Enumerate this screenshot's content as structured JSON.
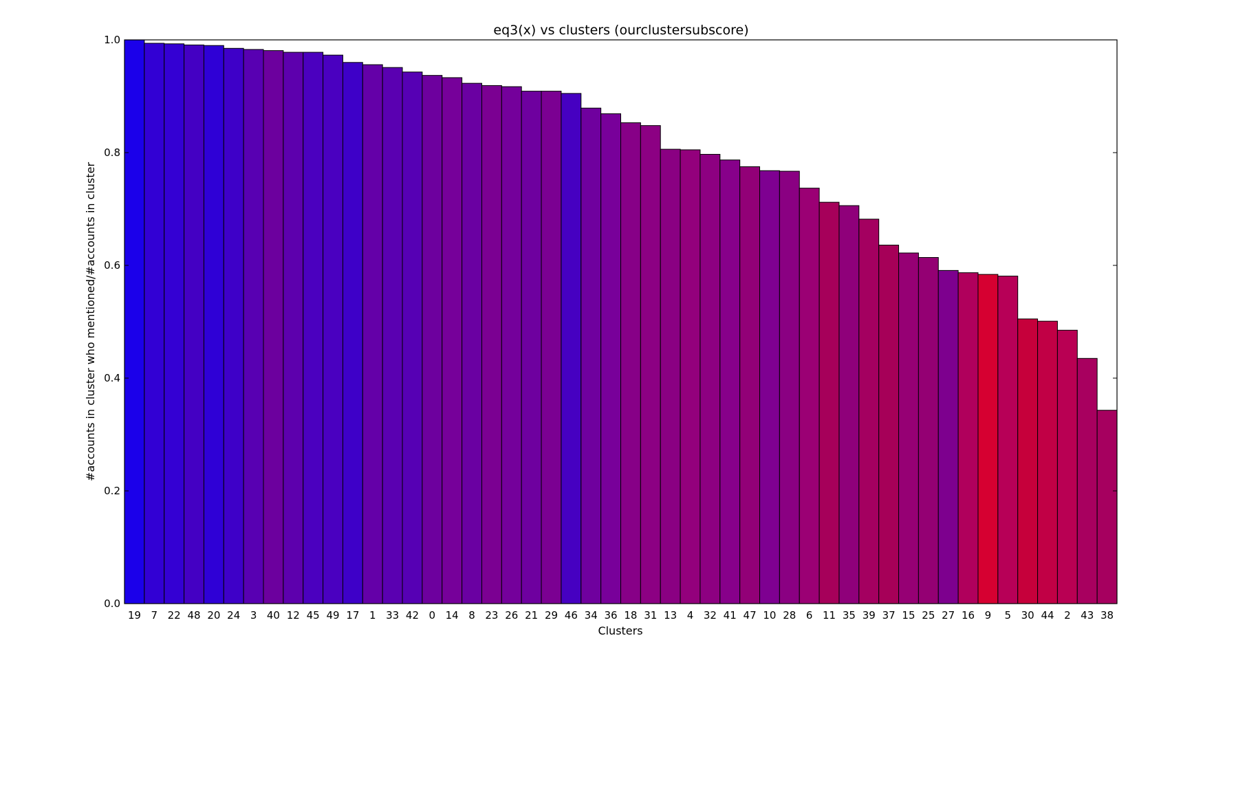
{
  "chart_data": {
    "type": "bar",
    "title": "eq3(x) vs clusters (ourclustersubscore)",
    "xlabel": "Clusters",
    "ylabel": "#accounts in cluster who mentioned/#accounts in cluster",
    "ylim": [
      0,
      1.0
    ],
    "yticks": [
      0.0,
      0.2,
      0.4,
      0.6,
      0.8,
      1.0
    ],
    "ytick_labels": [
      "0.0",
      "0.2",
      "0.4",
      "0.6",
      "0.8",
      "1.0"
    ],
    "grid": false,
    "legend": "none",
    "categories": [
      "19",
      "7",
      "22",
      "48",
      "20",
      "24",
      "3",
      "40",
      "12",
      "45",
      "49",
      "17",
      "1",
      "33",
      "42",
      "0",
      "14",
      "8",
      "23",
      "26",
      "21",
      "29",
      "46",
      "34",
      "36",
      "18",
      "31",
      "13",
      "4",
      "32",
      "41",
      "47",
      "10",
      "28",
      "6",
      "11",
      "35",
      "39",
      "37",
      "15",
      "25",
      "27",
      "16",
      "9",
      "5",
      "30",
      "44",
      "2",
      "43",
      "38"
    ],
    "values": [
      1.0,
      0.994,
      0.993,
      0.991,
      0.99,
      0.985,
      0.983,
      0.981,
      0.978,
      0.978,
      0.973,
      0.96,
      0.956,
      0.951,
      0.943,
      0.937,
      0.933,
      0.923,
      0.919,
      0.917,
      0.909,
      0.909,
      0.905,
      0.879,
      0.869,
      0.853,
      0.848,
      0.806,
      0.805,
      0.797,
      0.787,
      0.775,
      0.768,
      0.767,
      0.737,
      0.712,
      0.706,
      0.682,
      0.636,
      0.622,
      0.614,
      0.591,
      0.587,
      0.584,
      0.581,
      0.505,
      0.501,
      0.485,
      0.435,
      0.343
    ],
    "bar_colors": [
      "#1b00ea",
      "#3200d4",
      "#3400d3",
      "#4400c3",
      "#2f00d6",
      "#3e00c8",
      "#5800b2",
      "#6c009e",
      "#5d00ad",
      "#4b00bf",
      "#4a00c0",
      "#3e00c8",
      "#6400a8",
      "#5a00b1",
      "#5600b4",
      "#6d009e",
      "#76009a",
      "#6a00a2",
      "#7b0092",
      "#74009b",
      "#6e009f",
      "#7b0092",
      "#4600c1",
      "#6f009e",
      "#78009a",
      "#870087",
      "#8c0083",
      "#8a0082",
      "#93007c",
      "#8d0081",
      "#87008a",
      "#920077",
      "#7e0091",
      "#8a0082",
      "#9b0074",
      "#a6005a",
      "#8f007a",
      "#a40060",
      "#a60058",
      "#960074",
      "#940073",
      "#7d008e",
      "#b0005c",
      "#d60031",
      "#b70057",
      "#c6003b",
      "#c10045",
      "#b90053",
      "#a8005f",
      "#a6005f"
    ]
  }
}
